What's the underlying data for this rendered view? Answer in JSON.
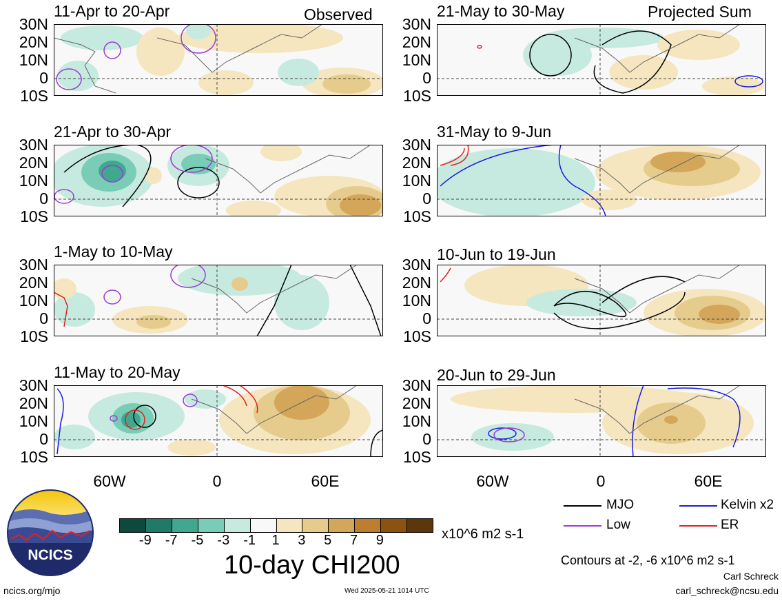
{
  "headers": {
    "observed": "Observed",
    "projected": "Projected Sum"
  },
  "panels": {
    "observed": [
      {
        "title": "11-Apr to 20-Apr"
      },
      {
        "title": "21-Apr to 30-Apr"
      },
      {
        "title": "1-May to 10-May"
      },
      {
        "title": "11-May to 20-May"
      }
    ],
    "projected": [
      {
        "title": "21-May to 30-May"
      },
      {
        "title": "31-May to 9-Jun"
      },
      {
        "title": "10-Jun to 19-Jun"
      },
      {
        "title": "20-Jun to 29-Jun"
      }
    ]
  },
  "lat_labels": [
    "30N",
    "20N",
    "10N",
    "0",
    "10S"
  ],
  "lon_labels": [
    "60W",
    "0",
    "60E"
  ],
  "colorbar": {
    "ticks": [
      "-9",
      "-7",
      "-5",
      "-3",
      "-1",
      "1",
      "3",
      "5",
      "7",
      "9"
    ],
    "colors": [
      "#0d4a3b",
      "#1f7a68",
      "#3fa88f",
      "#79cdb7",
      "#c6eadf",
      "#f8f8f8",
      "#f5e6bf",
      "#e6cc8c",
      "#d4a65a",
      "#bd7f2e",
      "#8e5210",
      "#5d370b"
    ],
    "units": "x10^6 m2 s-1",
    "title": "10-day CHI200"
  },
  "legend": {
    "items": [
      {
        "label": "MJO",
        "color": "#000000"
      },
      {
        "label": "Kelvin x2",
        "color": "#1a1adf"
      },
      {
        "label": "Low",
        "color": "#9b3bd6"
      },
      {
        "label": "ER",
        "color": "#e02020"
      }
    ],
    "contours_note": "Contours at -2, -6 x10^6 m2 s-1"
  },
  "logo": {
    "text": "NCICS"
  },
  "footer": {
    "url": "ncics.org/mjo",
    "timestamp": "Wed 2025-05-21 1014 UTC",
    "author": "Carl Schreck",
    "email": "carl_schreck@ncsu.edu"
  }
}
